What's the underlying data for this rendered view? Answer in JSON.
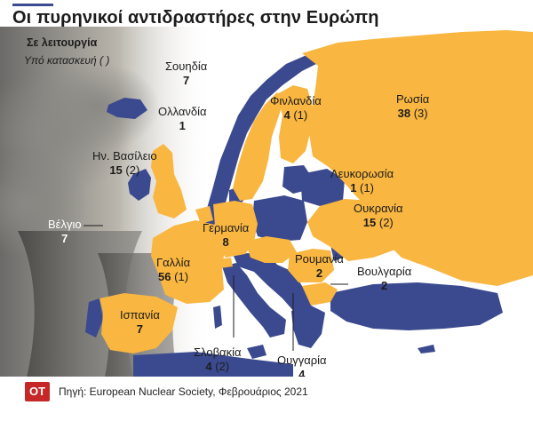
{
  "title": "Οι πυρηνικοί αντιδραστήρες στην Ευρώπη",
  "legend": {
    "operating": "Σε λειτουργία",
    "construction": "Υπό κατασκευή ( )"
  },
  "colors": {
    "nuclear": "#f9b640",
    "other": "#3b4a8f",
    "sea": "#ffffff",
    "brand": "#c62828"
  },
  "countries": [
    {
      "id": "sweden",
      "name": "Σουηδία",
      "operating": "7",
      "construction": ""
    },
    {
      "id": "finland",
      "name": "Φινλανδία",
      "operating": "4",
      "construction": "(1)"
    },
    {
      "id": "russia",
      "name": "Ρωσία",
      "operating": "38",
      "construction": "(3)"
    },
    {
      "id": "netherlands",
      "name": "Ολλανδία",
      "operating": "1",
      "construction": ""
    },
    {
      "id": "uk",
      "name": "Ην. Βασίλειο",
      "operating": "15",
      "construction": "(2)"
    },
    {
      "id": "belarus",
      "name": "Λευκορωσία",
      "operating": "1",
      "construction": "(1)"
    },
    {
      "id": "belgium",
      "name": "Βέλγιο",
      "operating": "7",
      "construction": ""
    },
    {
      "id": "ukraine",
      "name": "Ουκρανία",
      "operating": "15",
      "construction": "(2)"
    },
    {
      "id": "germany",
      "name": "Γερμανία",
      "operating": "8",
      "construction": ""
    },
    {
      "id": "france",
      "name": "Γαλλία",
      "operating": "56",
      "construction": "(1)"
    },
    {
      "id": "romania",
      "name": "Ρουμανία",
      "operating": "2",
      "construction": ""
    },
    {
      "id": "bulgaria",
      "name": "Βουλγαρία",
      "operating": "2",
      "construction": ""
    },
    {
      "id": "spain",
      "name": "Ισπανία",
      "operating": "7",
      "construction": ""
    },
    {
      "id": "slovakia",
      "name": "Σλοβακία",
      "operating": "4",
      "construction": "(2)"
    },
    {
      "id": "hungary",
      "name": "Ουγγαρία",
      "operating": "4",
      "construction": ""
    }
  ],
  "logo": "OT",
  "source": "Πηγή: European Nuclear Society, Φεβρουάριος 2021"
}
